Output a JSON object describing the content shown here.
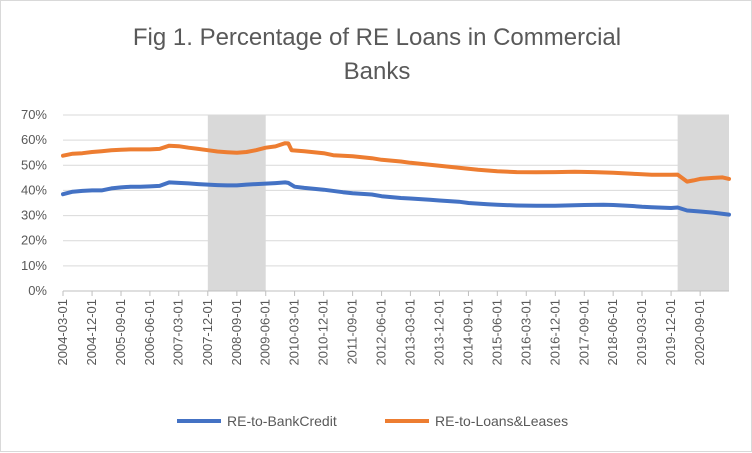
{
  "chart_data": {
    "type": "line",
    "title": "Fig 1. Percentage of RE Loans in Commercial Banks",
    "title_lines": [
      "Fig 1. Percentage of RE Loans in Commercial",
      "Banks"
    ],
    "xlabel": "",
    "ylabel": "",
    "ylim": [
      0,
      70
    ],
    "y_ticks": [
      "0%",
      "10%",
      "20%",
      "30%",
      "40%",
      "50%",
      "60%",
      "70%"
    ],
    "x_range": [
      "2004-03-01",
      "2021-06-01"
    ],
    "x_ticks": [
      "2004-03-01",
      "2004-12-01",
      "2005-09-01",
      "2006-06-01",
      "2007-03-01",
      "2007-12-01",
      "2008-09-01",
      "2009-06-01",
      "2010-03-01",
      "2010-12-01",
      "2011-09-01",
      "2012-06-01",
      "2013-03-01",
      "2013-12-01",
      "2014-09-01",
      "2015-06-01",
      "2016-03-01",
      "2016-12-01",
      "2017-09-01",
      "2018-06-01",
      "2019-03-01",
      "2019-12-01",
      "2020-09-01"
    ],
    "grid": true,
    "legend": "bottom",
    "recession_shading": [
      {
        "start": "2007-12-01",
        "end": "2009-06-01"
      },
      {
        "start": "2020-02-01",
        "end": "2021-06-01"
      }
    ],
    "shading_color": "#d9d9d9",
    "series": [
      {
        "name": "RE-to-BankCredit",
        "color": "#4472c4",
        "points": [
          [
            "2004-03-01",
            38.5
          ],
          [
            "2004-06-01",
            39.5
          ],
          [
            "2004-09-01",
            39.8
          ],
          [
            "2004-12-01",
            40.0
          ],
          [
            "2005-03-01",
            40.0
          ],
          [
            "2005-06-01",
            40.8
          ],
          [
            "2005-09-01",
            41.2
          ],
          [
            "2005-12-01",
            41.5
          ],
          [
            "2006-03-01",
            41.5
          ],
          [
            "2006-06-01",
            41.6
          ],
          [
            "2006-09-01",
            41.8
          ],
          [
            "2006-12-01",
            43.2
          ],
          [
            "2007-03-01",
            43.0
          ],
          [
            "2007-06-01",
            42.8
          ],
          [
            "2007-09-01",
            42.5
          ],
          [
            "2007-12-01",
            42.3
          ],
          [
            "2008-03-01",
            42.1
          ],
          [
            "2008-06-01",
            42.0
          ],
          [
            "2008-09-01",
            42.0
          ],
          [
            "2008-12-01",
            42.3
          ],
          [
            "2009-03-01",
            42.5
          ],
          [
            "2009-06-01",
            42.7
          ],
          [
            "2009-09-01",
            42.9
          ],
          [
            "2009-12-01",
            43.2
          ],
          [
            "2010-01-01",
            43.0
          ],
          [
            "2010-03-01",
            41.5
          ],
          [
            "2010-06-01",
            41.0
          ],
          [
            "2010-12-01",
            40.3
          ],
          [
            "2011-06-01",
            39.3
          ],
          [
            "2011-09-01",
            38.9
          ],
          [
            "2012-03-01",
            38.4
          ],
          [
            "2012-06-01",
            37.7
          ],
          [
            "2012-12-01",
            37.0
          ],
          [
            "2013-03-01",
            36.8
          ],
          [
            "2013-09-01",
            36.3
          ],
          [
            "2013-12-01",
            36.0
          ],
          [
            "2014-06-01",
            35.5
          ],
          [
            "2014-09-01",
            35.0
          ],
          [
            "2015-03-01",
            34.5
          ],
          [
            "2015-06-01",
            34.3
          ],
          [
            "2015-12-01",
            34.0
          ],
          [
            "2016-06-01",
            33.9
          ],
          [
            "2016-12-01",
            33.9
          ],
          [
            "2017-03-01",
            34.0
          ],
          [
            "2017-09-01",
            34.2
          ],
          [
            "2018-03-01",
            34.3
          ],
          [
            "2018-06-01",
            34.2
          ],
          [
            "2018-12-01",
            33.8
          ],
          [
            "2019-03-01",
            33.5
          ],
          [
            "2019-06-01",
            33.3
          ],
          [
            "2019-12-01",
            33.0
          ],
          [
            "2020-02-01",
            33.2
          ],
          [
            "2020-05-01",
            32.0
          ],
          [
            "2020-09-01",
            31.6
          ],
          [
            "2021-01-01",
            31.2
          ],
          [
            "2021-06-01",
            30.4
          ]
        ]
      },
      {
        "name": "RE-to-Loans&Leases",
        "color": "#ed7d31",
        "points": [
          [
            "2004-03-01",
            53.8
          ],
          [
            "2004-06-01",
            54.6
          ],
          [
            "2004-09-01",
            54.8
          ],
          [
            "2004-12-01",
            55.3
          ],
          [
            "2005-03-01",
            55.6
          ],
          [
            "2005-06-01",
            56.0
          ],
          [
            "2005-09-01",
            56.2
          ],
          [
            "2005-12-01",
            56.3
          ],
          [
            "2006-03-01",
            56.3
          ],
          [
            "2006-06-01",
            56.3
          ],
          [
            "2006-09-01",
            56.5
          ],
          [
            "2006-12-01",
            57.8
          ],
          [
            "2007-03-01",
            57.6
          ],
          [
            "2007-06-01",
            57.0
          ],
          [
            "2007-09-01",
            56.5
          ],
          [
            "2007-12-01",
            56.0
          ],
          [
            "2008-03-01",
            55.5
          ],
          [
            "2008-06-01",
            55.2
          ],
          [
            "2008-09-01",
            55.0
          ],
          [
            "2008-12-01",
            55.3
          ],
          [
            "2009-03-01",
            56.0
          ],
          [
            "2009-06-01",
            57.0
          ],
          [
            "2009-09-01",
            57.5
          ],
          [
            "2009-12-01",
            58.8
          ],
          [
            "2010-01-01",
            58.7
          ],
          [
            "2010-02-01",
            56.0
          ],
          [
            "2010-06-01",
            55.6
          ],
          [
            "2010-12-01",
            54.8
          ],
          [
            "2011-03-01",
            54.0
          ],
          [
            "2011-09-01",
            53.6
          ],
          [
            "2012-03-01",
            52.8
          ],
          [
            "2012-06-01",
            52.2
          ],
          [
            "2012-12-01",
            51.5
          ],
          [
            "2013-03-01",
            51.0
          ],
          [
            "2013-12-01",
            49.8
          ],
          [
            "2014-06-01",
            49.0
          ],
          [
            "2014-12-01",
            48.2
          ],
          [
            "2015-06-01",
            47.6
          ],
          [
            "2015-12-01",
            47.3
          ],
          [
            "2016-06-01",
            47.2
          ],
          [
            "2016-12-01",
            47.3
          ],
          [
            "2017-06-01",
            47.4
          ],
          [
            "2017-12-01",
            47.3
          ],
          [
            "2018-06-01",
            47.0
          ],
          [
            "2018-12-01",
            46.6
          ],
          [
            "2019-06-01",
            46.2
          ],
          [
            "2019-12-01",
            46.2
          ],
          [
            "2020-02-01",
            46.3
          ],
          [
            "2020-05-01",
            43.5
          ],
          [
            "2020-07-01",
            44.0
          ],
          [
            "2020-09-01",
            44.6
          ],
          [
            "2021-01-01",
            45.0
          ],
          [
            "2021-04-01",
            45.2
          ],
          [
            "2021-06-01",
            44.6
          ]
        ]
      }
    ]
  }
}
